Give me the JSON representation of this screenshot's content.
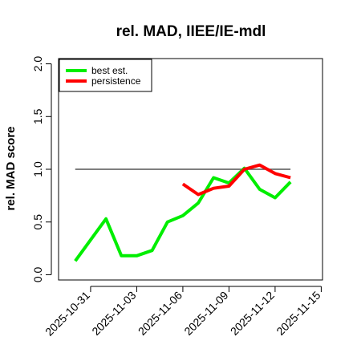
{
  "chart_data": {
    "type": "line",
    "title": "rel. MAD, IIEE/IE-mdl",
    "xlabel": "",
    "ylabel": "rel. MAD score",
    "x_ticks": [
      "2025-10-31",
      "2025-11-03",
      "2025-11-06",
      "2025-11-09",
      "2025-11-12",
      "2025-11-15"
    ],
    "y_ticks": [
      "0.0",
      "0.5",
      "1.0",
      "1.5",
      "2.0"
    ],
    "ylim": [
      -0.05,
      2.05
    ],
    "xlim": [
      "2025-10-28T22:00",
      "2025-11-15T02:00"
    ],
    "grid": false,
    "legend_position": "top-left",
    "reference_line": {
      "y": 1.0,
      "x_from": "2025-10-30",
      "x_to": "2025-11-13",
      "color": "#555555"
    },
    "series": [
      {
        "name": "best est.",
        "color": "#00ee00",
        "points": [
          [
            "2025-10-30",
            0.13
          ],
          [
            "2025-10-31",
            0.33
          ],
          [
            "2025-11-01",
            0.53
          ],
          [
            "2025-11-02",
            0.18
          ],
          [
            "2025-11-03",
            0.18
          ],
          [
            "2025-11-04",
            0.23
          ],
          [
            "2025-11-05",
            0.5
          ],
          [
            "2025-11-06",
            0.56
          ],
          [
            "2025-11-07",
            0.68
          ],
          [
            "2025-11-08",
            0.92
          ],
          [
            "2025-11-09",
            0.87
          ],
          [
            "2025-11-10",
            1.01
          ],
          [
            "2025-11-11",
            0.81
          ],
          [
            "2025-11-12",
            0.73
          ],
          [
            "2025-11-13",
            0.88
          ]
        ]
      },
      {
        "name": "persistence",
        "color": "#ff0000",
        "points": [
          [
            "2025-11-06",
            0.86
          ],
          [
            "2025-11-07",
            0.76
          ],
          [
            "2025-11-08",
            0.82
          ],
          [
            "2025-11-09",
            0.84
          ],
          [
            "2025-11-10",
            1.0
          ],
          [
            "2025-11-11",
            1.04
          ],
          [
            "2025-11-12",
            0.96
          ],
          [
            "2025-11-13",
            0.92
          ]
        ]
      }
    ]
  }
}
